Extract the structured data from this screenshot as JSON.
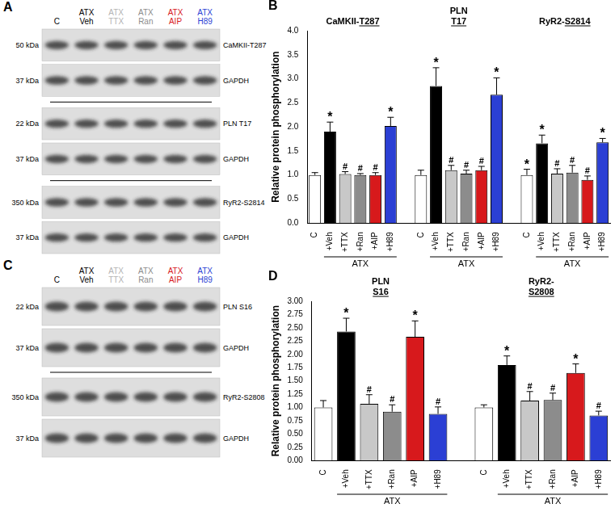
{
  "blots": {
    "panels": [
      {
        "panel": "A",
        "lanes": [
          {
            "lines": [
              "C"
            ],
            "color": "#000000"
          },
          {
            "lines": [
              "ATX",
              "Veh"
            ],
            "color": "#000000"
          },
          {
            "lines": [
              "ATX",
              "TTX"
            ],
            "color": "#b4b4b4"
          },
          {
            "lines": [
              "ATX",
              "Ran"
            ],
            "color": "#8c8c8c"
          },
          {
            "lines": [
              "ATX",
              "AIP"
            ],
            "color": "#d7191c"
          },
          {
            "lines": [
              "ATX",
              "H89"
            ],
            "color": "#2b3fd4"
          }
        ],
        "blocks": [
          [
            {
              "kda": "50 kDa",
              "protein": "CaMKII-T287"
            },
            {
              "kda": "37 kDa",
              "protein": "GAPDH"
            }
          ],
          [
            {
              "kda": "22 kDa",
              "protein": "PLN T17"
            },
            {
              "kda": "37 kDa",
              "protein": "GAPDH"
            }
          ],
          [
            {
              "kda": "350 kDa",
              "protein": "RyR2-S2814"
            },
            {
              "kda": "37 kDa",
              "protein": "GAPDH"
            }
          ]
        ]
      },
      {
        "panel": "C",
        "lanes": [
          {
            "lines": [
              "C"
            ],
            "color": "#000000"
          },
          {
            "lines": [
              "ATX",
              "Veh"
            ],
            "color": "#000000"
          },
          {
            "lines": [
              "ATX",
              "TTX"
            ],
            "color": "#b4b4b4"
          },
          {
            "lines": [
              "ATX",
              "Ran"
            ],
            "color": "#8c8c8c"
          },
          {
            "lines": [
              "ATX",
              "AIP"
            ],
            "color": "#d7191c"
          },
          {
            "lines": [
              "ATX",
              "H89"
            ],
            "color": "#2b3fd4"
          }
        ],
        "blocks": [
          [
            {
              "kda": "22 kDa",
              "protein": "PLN S16"
            },
            {
              "kda": "37 kDa",
              "protein": "GAPDH"
            }
          ],
          [
            {
              "kda": "350 kDa",
              "protein": "RyR2-S2808"
            },
            {
              "kda": "37 kDa",
              "protein": "GAPDH"
            }
          ]
        ]
      }
    ]
  },
  "chart_data": [
    {
      "type": "bar",
      "panel": "B",
      "y_label": "Relative protein phosphorylation",
      "categories": [
        "C",
        "+Veh",
        "+TTX",
        "+Ran",
        "+AIP",
        "+H89"
      ],
      "colors": [
        "#ffffff",
        "#000000",
        "#c8c8c8",
        "#8c8c8c",
        "#d7191c",
        "#2b3fd4"
      ],
      "bracket": {
        "label": "ATX",
        "from": "+Veh",
        "to": "+H89"
      },
      "ylim": [
        0,
        4
      ],
      "yticks": [
        {
          "value": 0,
          "label": "0.0"
        },
        {
          "value": 0.5,
          "label": "0.5"
        },
        {
          "value": 1,
          "label": "1.0"
        },
        {
          "value": 1.5,
          "label": "1.5"
        },
        {
          "value": 2,
          "label": "2.0"
        },
        {
          "value": 2.5,
          "label": "2.5"
        },
        {
          "value": 3,
          "label": "3.0"
        },
        {
          "value": 3.5,
          "label": "3.5"
        },
        {
          "value": 4,
          "label": "4.0"
        }
      ],
      "grid": false,
      "groups": [
        {
          "title": [
            "CaMKII-T287"
          ],
          "values": [
            1.0,
            1.9,
            1.02,
            1.0,
            1.0,
            2.02
          ],
          "errors": [
            0.05,
            0.2,
            0.05,
            0.03,
            0.05,
            0.18
          ],
          "marks": [
            null,
            "*",
            "#",
            "#",
            "#",
            "*"
          ]
        },
        {
          "title": [
            "PLN",
            "T17"
          ],
          "values": [
            1.0,
            2.85,
            1.1,
            1.03,
            1.1,
            2.67
          ],
          "errors": [
            0.1,
            0.38,
            0.1,
            0.07,
            0.08,
            0.35
          ],
          "marks": [
            null,
            "*",
            "#",
            "#",
            "#",
            "*"
          ]
        },
        {
          "title": [
            "RyR2-S2814"
          ],
          "values": [
            1.0,
            1.66,
            1.03,
            1.05,
            0.9,
            1.68
          ],
          "errors": [
            0.12,
            0.17,
            0.1,
            0.15,
            0.08,
            0.08
          ],
          "marks": [
            "*",
            "*",
            "#",
            "#",
            "#",
            "*"
          ]
        }
      ]
    },
    {
      "type": "bar",
      "panel": "D",
      "y_label": "Relative protein phosphorylation",
      "categories": [
        "C",
        "+Veh",
        "+TTX",
        "+Ran",
        "+AIP",
        "+H89"
      ],
      "colors": [
        "#ffffff",
        "#000000",
        "#c8c8c8",
        "#8c8c8c",
        "#d7191c",
        "#2b3fd4"
      ],
      "bracket": {
        "label": "ATX",
        "from": "+Veh",
        "to": "+H89"
      },
      "ylim": [
        0,
        3
      ],
      "yticks": [
        {
          "value": 0,
          "label": "0.00"
        },
        {
          "value": 0.25,
          "label": "0.25"
        },
        {
          "value": 0.5,
          "label": "0.50"
        },
        {
          "value": 0.75,
          "label": "0.75"
        },
        {
          "value": 1,
          "label": "1.00"
        },
        {
          "value": 1.25,
          "label": "1.25"
        },
        {
          "value": 1.5,
          "label": "1.50"
        },
        {
          "value": 1.75,
          "label": "1.75"
        },
        {
          "value": 2,
          "label": "2.00"
        },
        {
          "value": 2.25,
          "label": "2.25"
        },
        {
          "value": 2.5,
          "label": "2.50"
        },
        {
          "value": 2.75,
          "label": "2.75"
        },
        {
          "value": 3,
          "label": "3.00"
        }
      ],
      "grid": false,
      "groups": [
        {
          "title": [
            "PLN",
            "S16"
          ],
          "values": [
            1.0,
            2.43,
            1.07,
            0.92,
            2.33,
            0.88
          ],
          "errors": [
            0.13,
            0.25,
            0.17,
            0.13,
            0.3,
            0.13
          ],
          "marks": [
            null,
            "*",
            "#",
            "#",
            "*",
            "#"
          ]
        },
        {
          "title": [
            "RyR2-",
            "S2808"
          ],
          "values": [
            1.0,
            1.8,
            1.13,
            1.14,
            1.65,
            0.85
          ],
          "errors": [
            0.05,
            0.17,
            0.17,
            0.13,
            0.17,
            0.08
          ],
          "marks": [
            null,
            "*",
            "#",
            "#",
            "*",
            "#"
          ]
        }
      ]
    }
  ]
}
